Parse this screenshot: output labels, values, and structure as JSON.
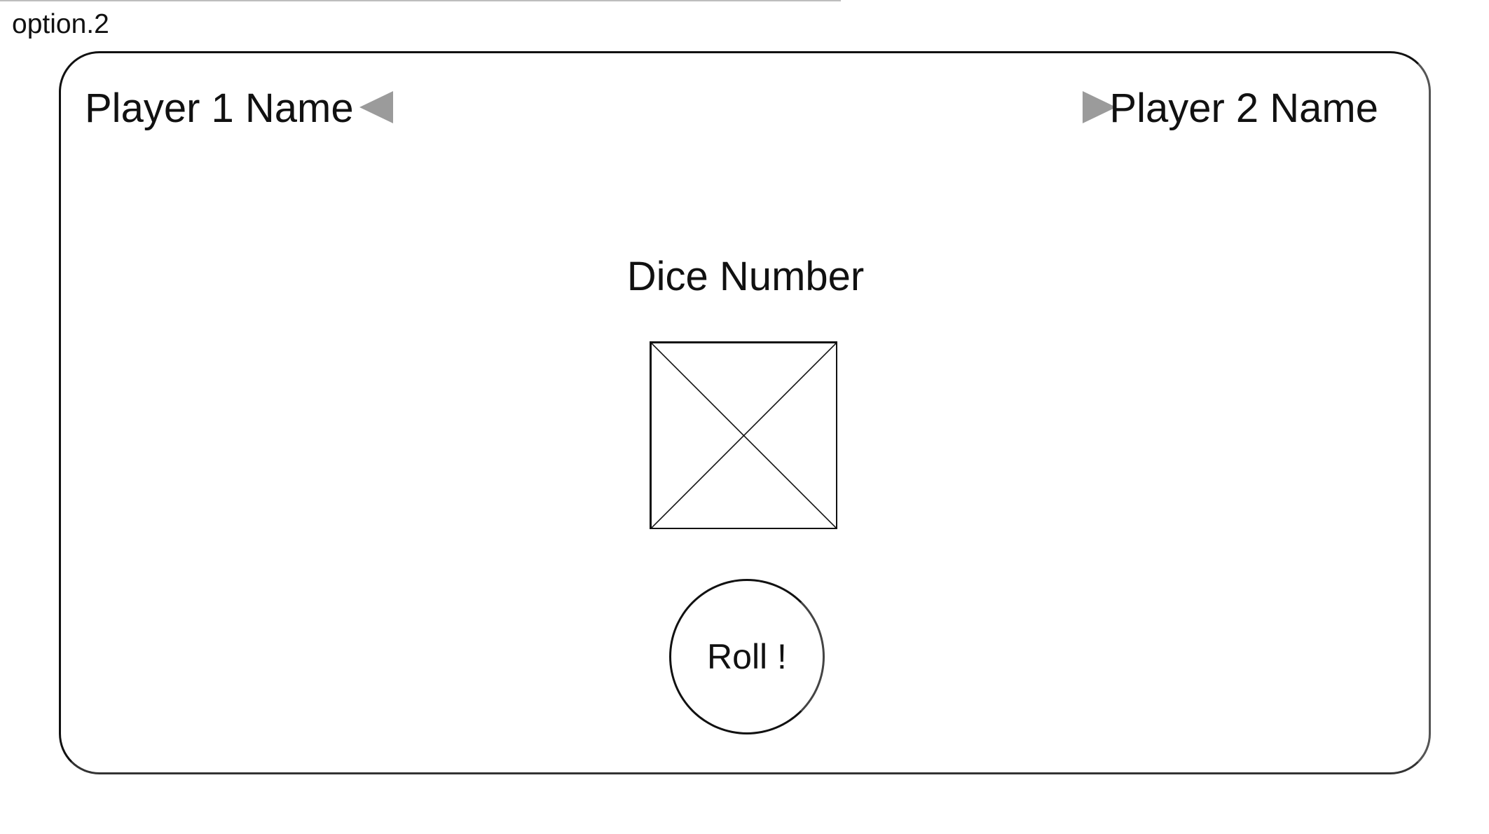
{
  "option_label": "option.2",
  "players": {
    "player1": {
      "name": "Player 1 Name",
      "turn_indicator_icon": "triangle-left-icon"
    },
    "player2": {
      "name": "Player 2 Name",
      "turn_indicator_icon": "triangle-right-icon"
    }
  },
  "dice": {
    "title": "Dice Number",
    "image_placeholder_icon": "image-placeholder-icon"
  },
  "roll_button": {
    "label": "Roll !"
  },
  "colors": {
    "stroke": "#111111",
    "arrow": "#9b9b9b",
    "background": "#ffffff"
  }
}
